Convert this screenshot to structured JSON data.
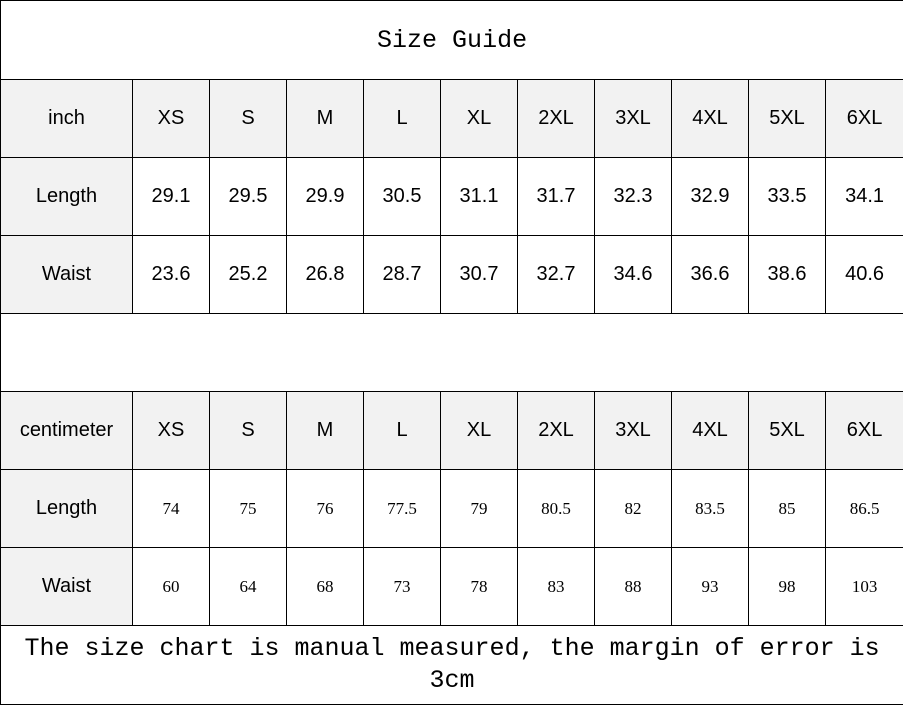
{
  "title": "Size Guide",
  "sizes": [
    "XS",
    "S",
    "M",
    "L",
    "XL",
    "2XL",
    "3XL",
    "4XL",
    "5XL",
    "6XL"
  ],
  "inch": {
    "unit_label": "inch",
    "rows": [
      {
        "label": "Length",
        "values": [
          "29.1",
          "29.5",
          "29.9",
          "30.5",
          "31.1",
          "31.7",
          "32.3",
          "32.9",
          "33.5",
          "34.1"
        ]
      },
      {
        "label": "Waist",
        "values": [
          "23.6",
          "25.2",
          "26.8",
          "28.7",
          "30.7",
          "32.7",
          "34.6",
          "36.6",
          "38.6",
          "40.6"
        ]
      }
    ]
  },
  "centimeter": {
    "unit_label": "centimeter",
    "rows": [
      {
        "label": "Length",
        "values": [
          "74",
          "75",
          "76",
          "77.5",
          "79",
          "80.5",
          "82",
          "83.5",
          "85",
          "86.5"
        ]
      },
      {
        "label": "Waist",
        "values": [
          "60",
          "64",
          "68",
          "73",
          "78",
          "83",
          "88",
          "93",
          "98",
          "103"
        ]
      }
    ]
  },
  "footer_note": "The size chart is manual measured, the margin of error is 3cm",
  "colors": {
    "header_bg": "#f2f2f2",
    "border": "#000000"
  }
}
